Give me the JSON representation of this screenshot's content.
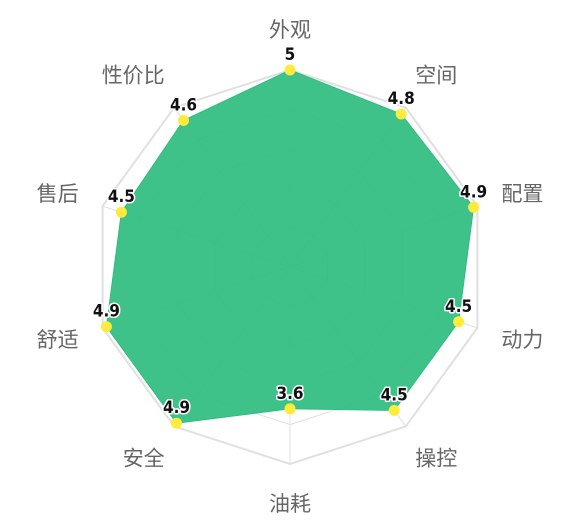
{
  "chart_data": {
    "type": "radar",
    "categories": [
      "外观",
      "空间",
      "配置",
      "动力",
      "操控",
      "油耗",
      "安全",
      "舒适",
      "售后",
      "性价比"
    ],
    "values": [
      5,
      4.8,
      4.9,
      4.5,
      4.5,
      3.6,
      4.9,
      4.9,
      4.5,
      4.6
    ],
    "value_labels": [
      "5",
      "4.8",
      "4.9",
      "4.5",
      "4.5",
      "3.6",
      "4.9",
      "4.9",
      "4.5",
      "4.6"
    ],
    "rmax": 5,
    "grid_levels": 5,
    "colors": {
      "area": "#2ebd7f",
      "point": "#ffeb3b",
      "grid": "#e0e0e0",
      "label": "#666666"
    }
  }
}
